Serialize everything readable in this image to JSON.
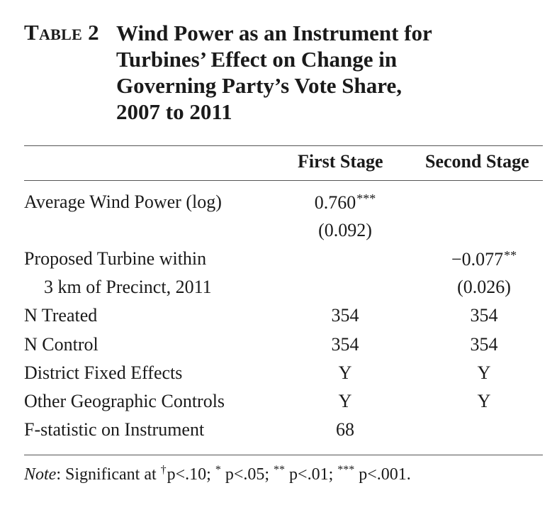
{
  "caption": {
    "table_number": "Table 2",
    "title_lines": [
      "Wind Power as an Instrument for",
      "Turbines’ Effect on Change in",
      "Governing Party’s Vote Share,",
      "2007 to 2011"
    ]
  },
  "columns": [
    "First Stage",
    "Second Stage"
  ],
  "rows": {
    "wind": {
      "label": "Average Wind Power (log)",
      "first_coef": "0.760",
      "first_stars": "***",
      "first_se": "(0.092)"
    },
    "turbine": {
      "label_1": "Proposed Turbine within",
      "label_2": "3 km of Precinct, 2011",
      "second_coef": "−0.077",
      "second_stars": "**",
      "second_se": "(0.026)"
    },
    "n_treated": {
      "label": "N Treated",
      "first": "354",
      "second": "354"
    },
    "n_control": {
      "label": "N Control",
      "first": "354",
      "second": "354"
    },
    "district_fe": {
      "label": "District Fixed Effects",
      "first": "Y",
      "second": "Y"
    },
    "geo_controls": {
      "label": "Other Geographic Controls",
      "first": "Y",
      "second": "Y"
    },
    "f_stat": {
      "label": "F-statistic on Instrument",
      "first": "68"
    }
  },
  "note": {
    "label": "Note",
    "lead": ": Significant at ",
    "dagger": "†",
    "p1": "p<.10; ",
    "s1": "*",
    "p2": " p<.05; ",
    "s2": "**",
    "p3": " p<.01; ",
    "s3": "***",
    "p4": " p<.001."
  }
}
